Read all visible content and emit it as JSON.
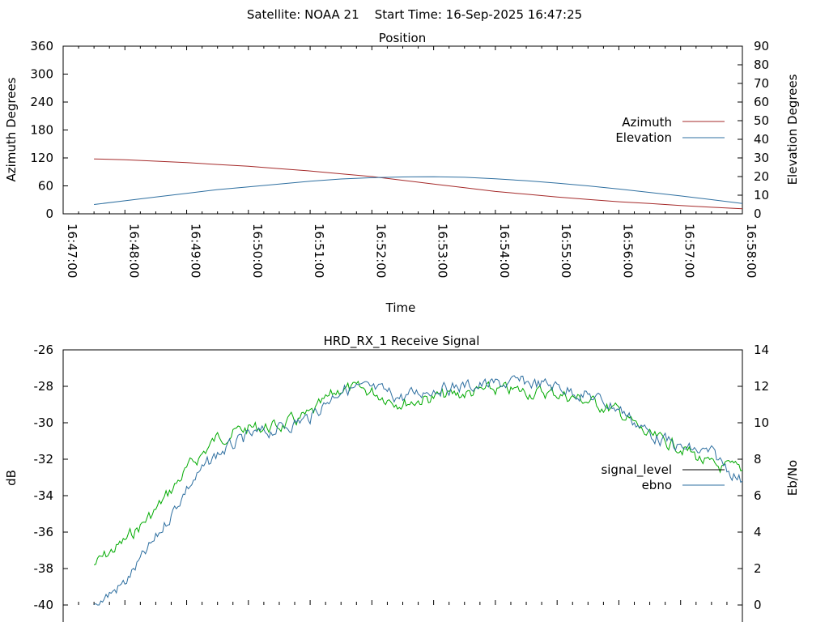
{
  "header": {
    "title": "Satellite: NOAA 21    Start Time: 16-Sep-2025 16:47:25"
  },
  "colors": {
    "azimuth": "#a52a2a",
    "elevation": "#2e6fa0",
    "signal_level": "#00aa00",
    "ebno": "#2e6fa0",
    "signal_level_key": "#000000"
  },
  "chart_data": [
    {
      "type": "line",
      "title": "Position",
      "xlabel": "Time",
      "ylabel": "Azimuth Degrees",
      "y2label": "Elevation Degrees",
      "xlim": [
        "16:47:00",
        "16:58:00"
      ],
      "xticks": [
        "16:47:00",
        "16:48:00",
        "16:49:00",
        "16:50:00",
        "16:51:00",
        "16:52:00",
        "16:53:00",
        "16:54:00",
        "16:55:00",
        "16:56:00",
        "16:57:00",
        "16:58:00"
      ],
      "ylim": [
        0,
        360
      ],
      "yticks": [
        0,
        60,
        120,
        180,
        240,
        300,
        360
      ],
      "y2lim": [
        0,
        90
      ],
      "y2ticks": [
        0,
        10,
        20,
        30,
        40,
        50,
        60,
        70,
        80,
        90
      ],
      "legend_position": "right",
      "x": [
        "16:47:30",
        "16:48:00",
        "16:48:30",
        "16:49:00",
        "16:49:30",
        "16:50:00",
        "16:50:30",
        "16:51:00",
        "16:51:30",
        "16:52:00",
        "16:52:30",
        "16:53:00",
        "16:53:30",
        "16:54:00",
        "16:54:30",
        "16:55:00",
        "16:55:30",
        "16:56:00",
        "16:56:30",
        "16:57:00",
        "16:57:30",
        "16:58:00"
      ],
      "series": [
        {
          "name": "Azimuth",
          "axis": "y1",
          "values": [
            118,
            116,
            113,
            110,
            106,
            102,
            97,
            92,
            86,
            80,
            72,
            64,
            56,
            48,
            42,
            36,
            31,
            26,
            22,
            18,
            14,
            11
          ]
        },
        {
          "name": "Elevation",
          "axis": "y2",
          "values": [
            5,
            7,
            9,
            11,
            13,
            14.5,
            16,
            17.5,
            18.7,
            19.4,
            19.8,
            19.9,
            19.6,
            18.8,
            17.8,
            16.5,
            15,
            13.3,
            11.5,
            9.6,
            7.6,
            5.5
          ]
        }
      ]
    },
    {
      "type": "line",
      "title": "HRD_RX_1 Receive Signal",
      "ylabel": "dB",
      "y2label": "Eb/No",
      "xlim": [
        "16:47:00",
        "16:58:00"
      ],
      "ylim": [
        -40,
        -26
      ],
      "yticks": [
        -40,
        -38,
        -36,
        -34,
        -32,
        -30,
        -28,
        -26
      ],
      "y2lim": [
        0,
        14
      ],
      "y2ticks": [
        0,
        2,
        4,
        6,
        8,
        10,
        12,
        14
      ],
      "legend_position": "right",
      "x": [
        "16:47:30",
        "16:48:00",
        "16:48:30",
        "16:49:00",
        "16:49:30",
        "16:50:00",
        "16:50:30",
        "16:51:00",
        "16:51:30",
        "16:52:00",
        "16:52:30",
        "16:53:00",
        "16:53:30",
        "16:54:00",
        "16:54:30",
        "16:55:00",
        "16:55:30",
        "16:56:00",
        "16:56:30",
        "16:57:00",
        "16:57:30",
        "16:58:00"
      ],
      "series": [
        {
          "name": "signal_level",
          "axis": "y1",
          "values": [
            -37.8,
            -36.5,
            -34.8,
            -32.6,
            -30.8,
            -30.3,
            -30.2,
            -29.6,
            -28.1,
            -28.3,
            -28.9,
            -28.6,
            -28.4,
            -28.2,
            -28.3,
            -28.4,
            -28.8,
            -29.4,
            -30.8,
            -31.3,
            -32.4,
            -32.6
          ]
        },
        {
          "name": "ebno",
          "axis": "y2",
          "values": [
            0,
            1.2,
            3.6,
            6.4,
            8.3,
            9.2,
            9.7,
            10.3,
            11.9,
            11.8,
            11.4,
            11.9,
            12.0,
            12.1,
            12.2,
            12.0,
            11.5,
            10.8,
            9.4,
            8.6,
            8.3,
            6.8
          ]
        }
      ]
    }
  ]
}
